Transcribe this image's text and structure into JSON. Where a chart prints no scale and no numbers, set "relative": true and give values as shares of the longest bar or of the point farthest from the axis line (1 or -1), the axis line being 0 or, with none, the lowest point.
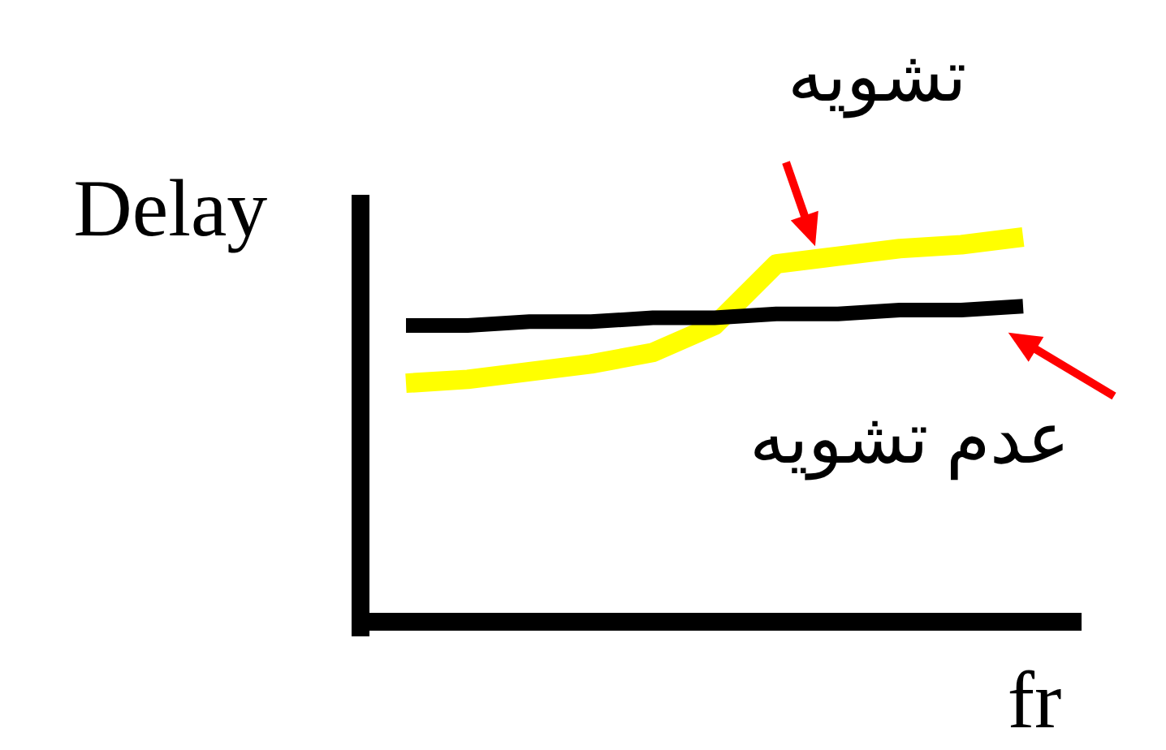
{
  "chart_data": {
    "type": "line",
    "relative": true,
    "xlabel": "fr",
    "ylabel": "Delay",
    "categories": [
      null,
      null,
      null,
      null,
      null,
      null,
      null,
      null,
      null,
      null,
      null
    ],
    "series": [
      {
        "name": "تشويه",
        "color": "#ffff00",
        "values": [
          0.62,
          0.63,
          0.65,
          0.67,
          0.7,
          0.77,
          0.93,
          0.95,
          0.97,
          0.98,
          1.0
        ]
      },
      {
        "name": "عدم تشويه",
        "color": "#000000",
        "values": [
          0.77,
          0.77,
          0.78,
          0.78,
          0.79,
          0.79,
          0.8,
          0.8,
          0.81,
          0.81,
          0.82
        ]
      }
    ]
  }
}
